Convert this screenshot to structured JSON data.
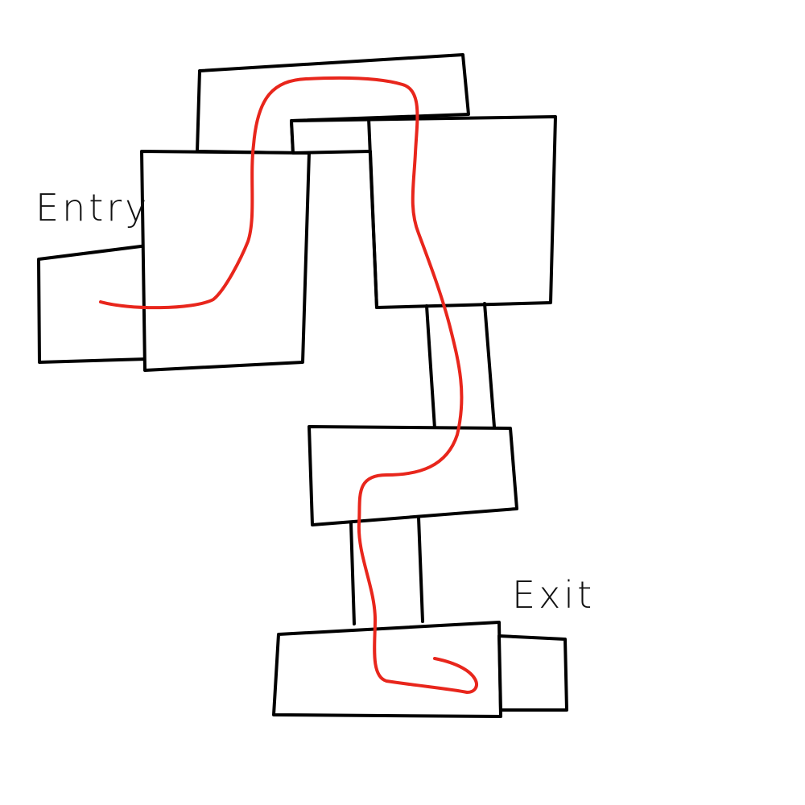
{
  "labels": {
    "entry": "Entry",
    "exit": "Exit"
  },
  "colors": {
    "outline": "#000000",
    "route": "#e8261c",
    "background": "#ffffff"
  }
}
